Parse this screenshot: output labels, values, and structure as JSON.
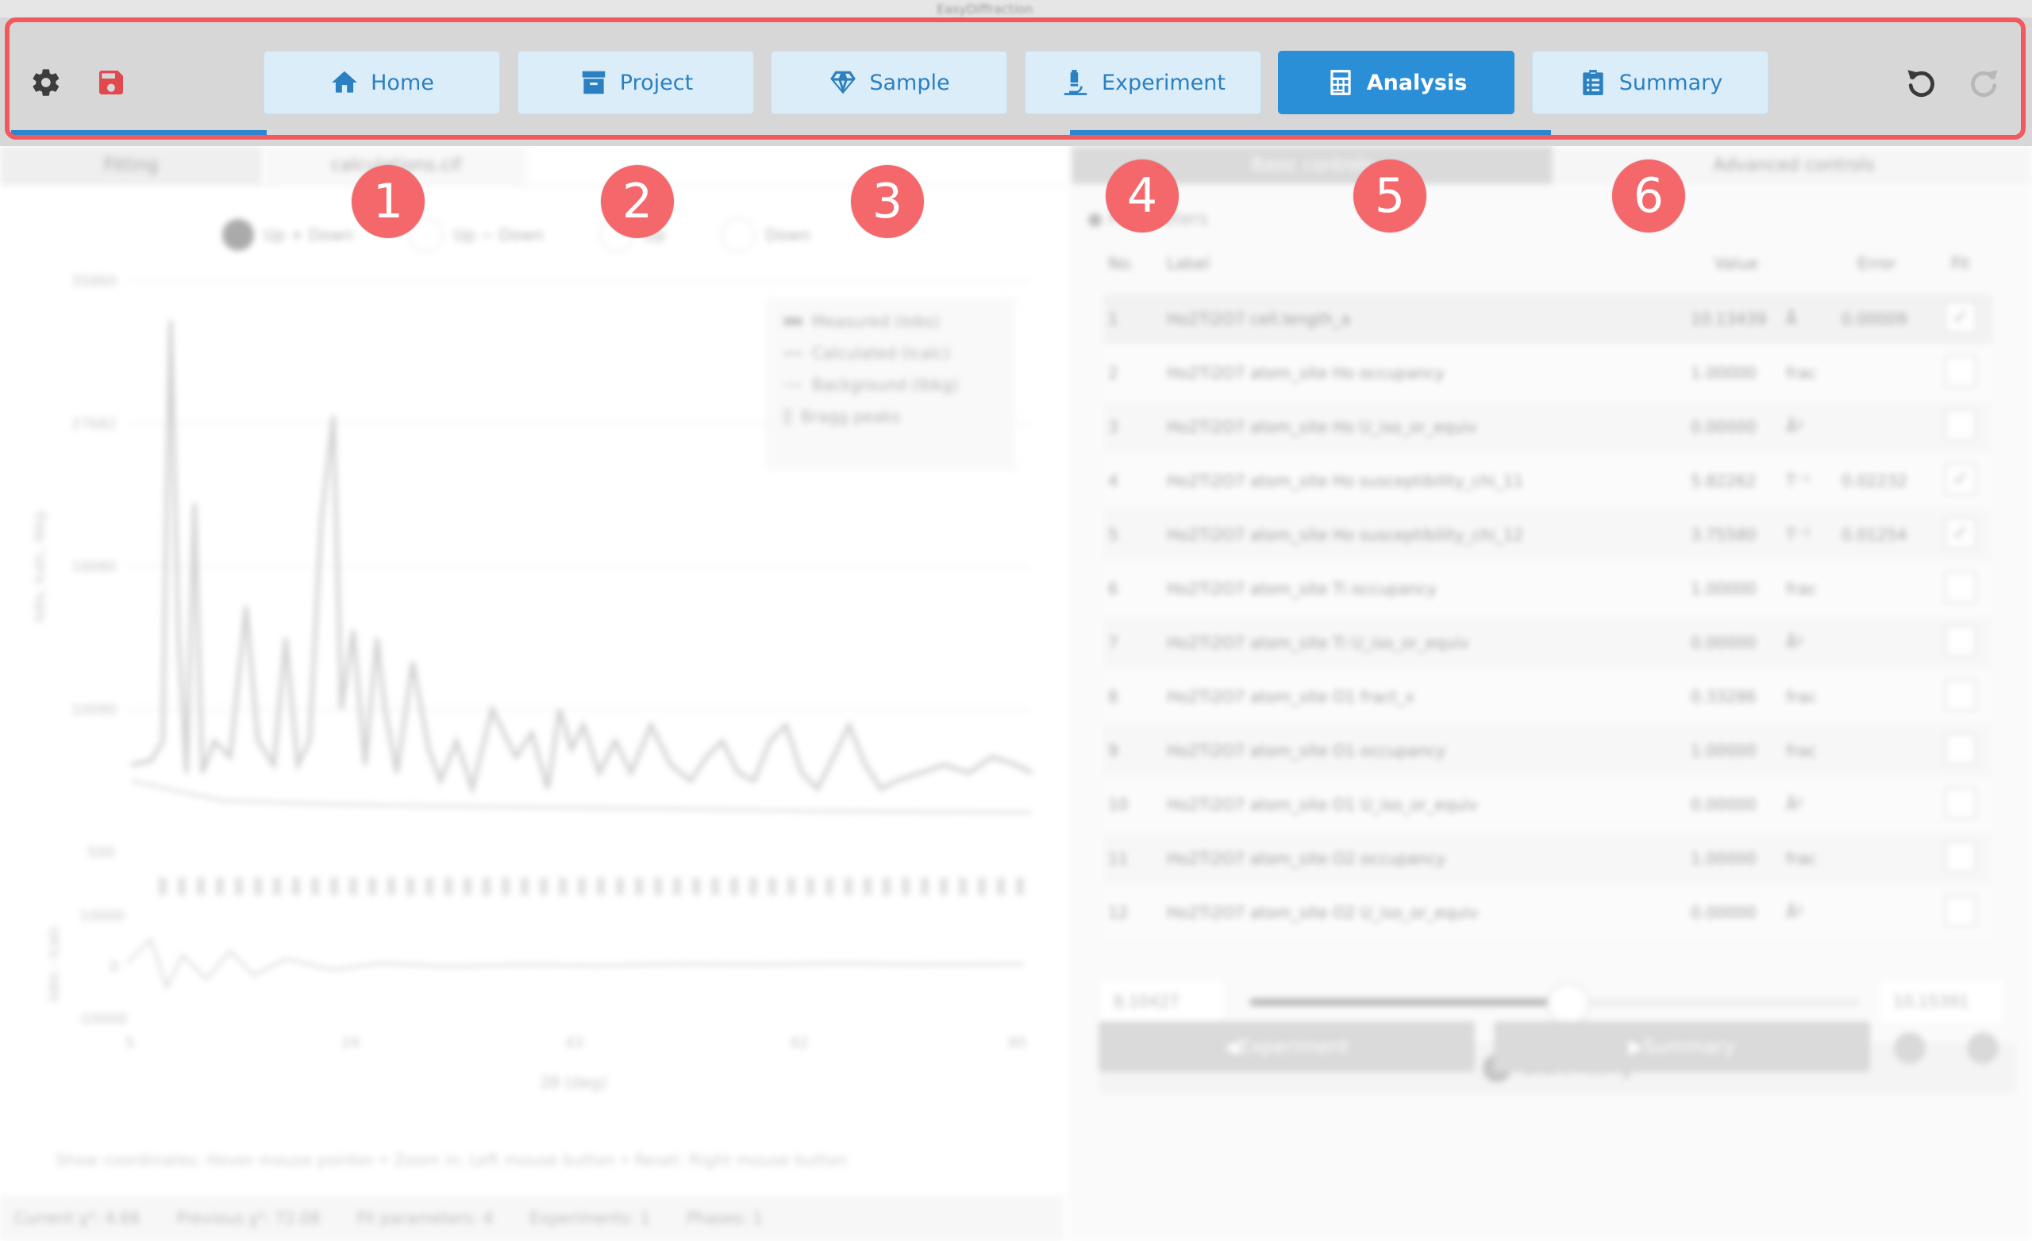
{
  "window": {
    "title": "EasyDiffraction"
  },
  "toolbar": {
    "settings_icon": "gear-icon",
    "save_icon": "floppy-disk-icon",
    "undo_icon": "undo-icon",
    "redo_icon": "redo-icon",
    "tabs": [
      {
        "label": "Home",
        "icon": "home-icon",
        "active": false
      },
      {
        "label": "Project",
        "icon": "archive-box-icon",
        "active": false
      },
      {
        "label": "Sample",
        "icon": "gem-icon",
        "active": false
      },
      {
        "label": "Experiment",
        "icon": "microscope-icon",
        "active": false
      },
      {
        "label": "Analysis",
        "icon": "calculator-icon",
        "active": true
      },
      {
        "label": "Summary",
        "icon": "clipboard-list-icon",
        "active": false
      }
    ]
  },
  "badges": [
    "1",
    "2",
    "3",
    "4",
    "5",
    "6"
  ],
  "colors": {
    "accent": "#2a8fd6",
    "tab_bg": "#daedf8",
    "highlight": "#f05a5f",
    "badge": "#f4686b",
    "toolbar_bg": "#d7d7d7"
  },
  "left_panel": {
    "subtabs": [
      "Fitting",
      "calculations.cif"
    ],
    "radio_options": [
      "Up + Down",
      "Up − Down",
      "Up",
      "Down"
    ],
    "legend": [
      "Measured (Iobs)",
      "Calculated (Icalc)",
      "Background (Ibkg)",
      "Bragg peaks"
    ],
    "y_ticks": [
      "35860",
      "27682",
      "18980",
      "10090",
      "500"
    ],
    "ylabel": "Iobs, Icalc, Ibkg",
    "diff_ticks": [
      "10000",
      "0",
      "-10000"
    ],
    "diff_label": "Iobs - Icalc",
    "x_ticks": [
      "5",
      "24",
      "43",
      "62",
      "80"
    ],
    "xlabel": "2θ (deg)",
    "hint": "Show coordinates: Hover mouse pointer  •  Zoom in: Left mouse button  •  Reset: Right mouse button"
  },
  "right_panel": {
    "subtabs": [
      "Basic controls",
      "Advanced controls"
    ],
    "section": "Parameters",
    "columns": {
      "no": "No.",
      "label": "Label",
      "value": "Value",
      "error": "Error",
      "fit": "Fit"
    },
    "rows": [
      {
        "no": "1",
        "label": "Ho2Ti2O7 cell.length_a",
        "value": "10.13439",
        "unit": "Å",
        "error": "0.00009",
        "fit": "✓"
      },
      {
        "no": "2",
        "label": "Ho2Ti2O7 atom_site Ho occupancy",
        "value": "1.00000",
        "unit": "frac",
        "error": "",
        "fit": ""
      },
      {
        "no": "3",
        "label": "Ho2Ti2O7 atom_site Ho U_iso_or_equiv",
        "value": "0.00000",
        "unit": "Å²",
        "error": "",
        "fit": ""
      },
      {
        "no": "4",
        "label": "Ho2Ti2O7 atom_site Ho susceptibility_chi_11",
        "value": "5.82262",
        "unit": "T⁻¹",
        "error": "0.02232",
        "fit": "✓"
      },
      {
        "no": "5",
        "label": "Ho2Ti2O7 atom_site Ho susceptibility_chi_12",
        "value": "3.75580",
        "unit": "T⁻¹",
        "error": "0.01254",
        "fit": "✓"
      },
      {
        "no": "6",
        "label": "Ho2Ti2O7 atom_site Ti occupancy",
        "value": "1.00000",
        "unit": "frac",
        "error": "",
        "fit": ""
      },
      {
        "no": "7",
        "label": "Ho2Ti2O7 atom_site Ti U_iso_or_equiv",
        "value": "0.00000",
        "unit": "Å²",
        "error": "",
        "fit": ""
      },
      {
        "no": "8",
        "label": "Ho2Ti2O7 atom_site O1 fract_x",
        "value": "0.33286",
        "unit": "frac",
        "error": "",
        "fit": ""
      },
      {
        "no": "9",
        "label": "Ho2Ti2O7 atom_site O1 occupancy",
        "value": "1.00000",
        "unit": "frac",
        "error": "",
        "fit": ""
      },
      {
        "no": "10",
        "label": "Ho2Ti2O7 atom_site O1 U_iso_or_equiv",
        "value": "0.00000",
        "unit": "Å²",
        "error": "",
        "fit": ""
      },
      {
        "no": "11",
        "label": "Ho2Ti2O7 atom_site O2 occupancy",
        "value": "1.00000",
        "unit": "frac",
        "error": "",
        "fit": ""
      },
      {
        "no": "12",
        "label": "Ho2Ti2O7 atom_site O2 U_iso_or_equiv",
        "value": "0.00000",
        "unit": "Å²",
        "error": "",
        "fit": ""
      }
    ],
    "slider_min": "8.10427",
    "slider_max": "10.15391",
    "slider_fraction": 0.52,
    "start_fitting": "Start fitting",
    "prev_button": "Experiment",
    "next_button": "Summary"
  },
  "status": [
    "Current χ²: 4.66",
    "Previous χ²: 72.08",
    "Fit parameters: 4",
    "Experiments: 1",
    "Phases: 1"
  ]
}
